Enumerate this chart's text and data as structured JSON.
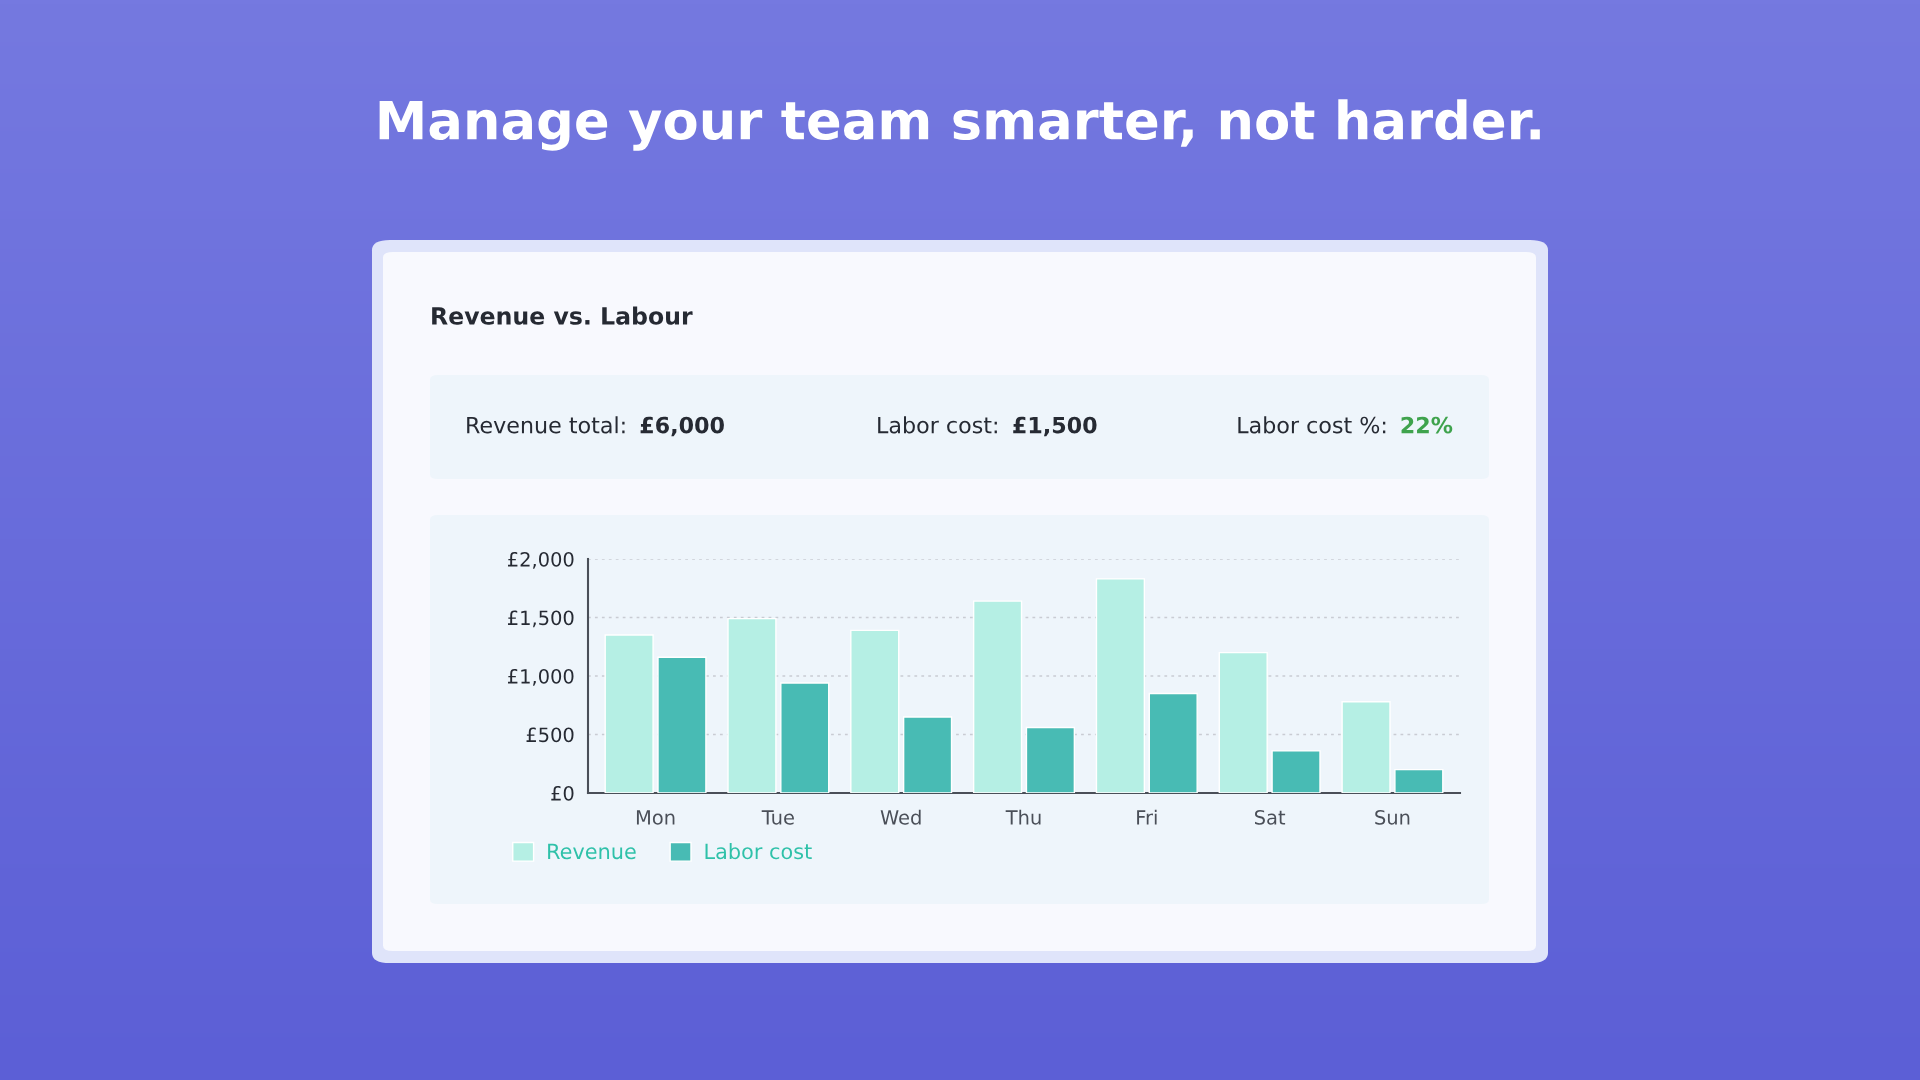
{
  "chart_data": {
    "type": "bar",
    "title": "Manage your team smarter, not harder.",
    "subtitle": "Revenue vs. Labour",
    "annotations": [
      "Revenue total:",
      "£6,000",
      "Labor cost:",
      "£1,500",
      "Labor cost %:",
      "22%"
    ],
    "categories": [
      "Mon",
      "Tue",
      "Wed",
      "Thu",
      "Fri",
      "Sat",
      "Sun"
    ],
    "series": [
      {
        "name": "Revenue",
        "color": "#b5efe4",
        "values": [
          1350,
          1490,
          1390,
          1640,
          1830,
          1200,
          780
        ]
      },
      {
        "name": "Labor cost",
        "color": "#48bbb4",
        "values": [
          1160,
          940,
          650,
          560,
          850,
          360,
          200
        ]
      }
    ],
    "ylim": [
      0,
      2000
    ],
    "yticks": [
      {
        "value": 0,
        "label": "£0"
      },
      {
        "value": 500,
        "label": "£500"
      },
      {
        "value": 1000,
        "label": "£1,000"
      },
      {
        "value": 1500,
        "label": "£1,500"
      },
      {
        "value": 2000,
        "label": "£2,000"
      }
    ],
    "grid": "y",
    "legend": "bottom left"
  }
}
